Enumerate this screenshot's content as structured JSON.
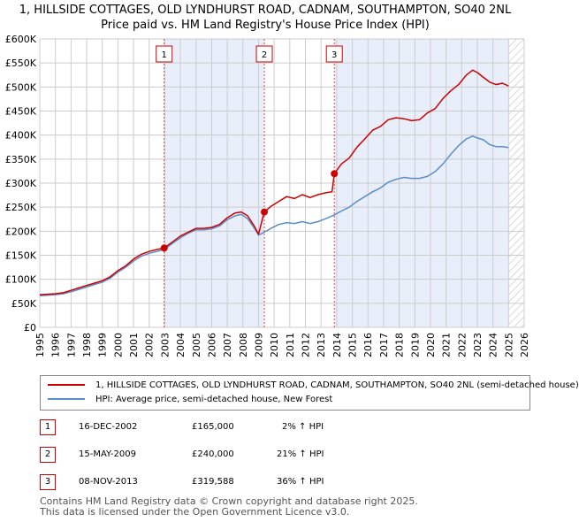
{
  "title_line1": "1, HILLSIDE COTTAGES, OLD LYNDHURST ROAD, CADNAM, SOUTHAMPTON, SO40 2NL",
  "title_line2": "Price paid vs. HM Land Registry's House Price Index (HPI)",
  "chart_data": {
    "type": "line",
    "title": "1, HILLSIDE COTTAGES, OLD LYNDHURST ROAD, CADNAM, SOUTHAMPTON, SO40 2NL — Price paid vs. HM Land Registry's House Price Index (HPI)",
    "xlabel": "",
    "ylabel": "",
    "xlim": [
      1995,
      2026
    ],
    "ylim": [
      0,
      600000
    ],
    "grid": true,
    "yticks": [
      {
        "value": 0,
        "label": "£0"
      },
      {
        "value": 50000,
        "label": "£50K"
      },
      {
        "value": 100000,
        "label": "£100K"
      },
      {
        "value": 150000,
        "label": "£150K"
      },
      {
        "value": 200000,
        "label": "£200K"
      },
      {
        "value": 250000,
        "label": "£250K"
      },
      {
        "value": 300000,
        "label": "£300K"
      },
      {
        "value": 350000,
        "label": "£350K"
      },
      {
        "value": 400000,
        "label": "£400K"
      },
      {
        "value": 450000,
        "label": "£450K"
      },
      {
        "value": 500000,
        "label": "£500K"
      },
      {
        "value": 550000,
        "label": "£550K"
      },
      {
        "value": 600000,
        "label": "£600K"
      }
    ],
    "xticks": [
      "1995",
      "1996",
      "1997",
      "1998",
      "1999",
      "2000",
      "2001",
      "2002",
      "2003",
      "2004",
      "2005",
      "2006",
      "2007",
      "2008",
      "2009",
      "2010",
      "2011",
      "2012",
      "2013",
      "2014",
      "2015",
      "2016",
      "2017",
      "2018",
      "2019",
      "2020",
      "2021",
      "2022",
      "2023",
      "2024",
      "2025",
      "2026"
    ],
    "series": [
      {
        "name": "1, HILLSIDE COTTAGES, OLD LYNDHURST ROAD, CADNAM, SOUTHAMPTON, SO40 2NL (semi-detached house)",
        "color": "#cc0000",
        "x": [
          1995.0,
          1996.0,
          1996.5,
          1997.0,
          1997.5,
          1998.0,
          1998.5,
          1999.0,
          1999.5,
          2000.0,
          2000.5,
          2001.0,
          2001.5,
          2002.0,
          2002.5,
          2002.96,
          2003.5,
          2004.0,
          2004.5,
          2005.0,
          2005.5,
          2006.0,
          2006.5,
          2007.0,
          2007.5,
          2007.9,
          2008.3,
          2008.7,
          2009.0,
          2009.3,
          2009.37,
          2009.8,
          2010.3,
          2010.8,
          2011.3,
          2011.8,
          2012.3,
          2012.8,
          2013.3,
          2013.7,
          2013.85,
          2014.3,
          2014.8,
          2015.3,
          2015.8,
          2016.3,
          2016.8,
          2017.3,
          2017.8,
          2018.3,
          2018.8,
          2019.3,
          2019.8,
          2020.3,
          2020.8,
          2021.3,
          2021.8,
          2022.3,
          2022.7,
          2023.0,
          2023.4,
          2023.8,
          2024.2,
          2024.6,
          2025.0
        ],
        "values": [
          68000,
          70000,
          72000,
          77000,
          82000,
          87000,
          92000,
          97000,
          105000,
          118000,
          128000,
          142000,
          152000,
          158000,
          162000,
          165000,
          178000,
          190000,
          198000,
          206000,
          206000,
          208000,
          214000,
          228000,
          238000,
          240000,
          232000,
          212000,
          194000,
          232000,
          240000,
          252000,
          262000,
          272000,
          268000,
          276000,
          270000,
          276000,
          280000,
          282000,
          319588,
          340000,
          352000,
          375000,
          392000,
          410000,
          418000,
          432000,
          436000,
          434000,
          430000,
          432000,
          446000,
          455000,
          476000,
          492000,
          505000,
          525000,
          535000,
          530000,
          520000,
          510000,
          505000,
          508000,
          502000
        ]
      },
      {
        "name": "HPI: Average price, semi-detached house, New Forest",
        "color": "#5b8dc9",
        "x": [
          1995.0,
          1996.0,
          1996.5,
          1997.0,
          1997.5,
          1998.0,
          1998.5,
          1999.0,
          1999.5,
          2000.0,
          2000.5,
          2001.0,
          2001.5,
          2002.0,
          2002.5,
          2002.96,
          2003.5,
          2004.0,
          2004.5,
          2005.0,
          2005.5,
          2006.0,
          2006.5,
          2007.0,
          2007.5,
          2007.9,
          2008.3,
          2008.7,
          2009.0,
          2009.37,
          2009.8,
          2010.3,
          2010.8,
          2011.3,
          2011.8,
          2012.3,
          2012.8,
          2013.3,
          2013.85,
          2014.3,
          2014.8,
          2015.3,
          2015.8,
          2016.3,
          2016.8,
          2017.3,
          2017.8,
          2018.3,
          2018.8,
          2019.3,
          2019.8,
          2020.3,
          2020.8,
          2021.3,
          2021.8,
          2022.3,
          2022.7,
          2023.0,
          2023.4,
          2023.8,
          2024.2,
          2024.6,
          2025.0
        ],
        "values": [
          66000,
          68000,
          70000,
          74000,
          79000,
          84000,
          89000,
          94000,
          102000,
          115000,
          125000,
          138000,
          148000,
          154000,
          158000,
          162000,
          175000,
          186000,
          196000,
          203000,
          203000,
          205000,
          211000,
          224000,
          232000,
          235000,
          226000,
          208000,
          192000,
          198000,
          206000,
          214000,
          218000,
          216000,
          220000,
          216000,
          220000,
          226000,
          234000,
          242000,
          250000,
          262000,
          272000,
          282000,
          290000,
          302000,
          308000,
          312000,
          310000,
          310000,
          314000,
          324000,
          340000,
          360000,
          378000,
          392000,
          398000,
          394000,
          390000,
          380000,
          376000,
          376000,
          374000
        ]
      }
    ],
    "sales": [
      {
        "marker": "1",
        "x": 2002.96,
        "value": 165000
      },
      {
        "marker": "2",
        "x": 2009.37,
        "value": 240000
      },
      {
        "marker": "3",
        "x": 2013.85,
        "value": 319588
      }
    ],
    "shaded_periods": [
      [
        2002.96,
        2009.37
      ],
      [
        2013.85,
        2025.0
      ]
    ],
    "future_hatch_from": 2025.0
  },
  "legend": {
    "property_label": "1, HILLSIDE COTTAGES, OLD LYNDHURST ROAD, CADNAM, SOUTHAMPTON, SO40 2NL (semi-detached house)",
    "hpi_label": "HPI: Average price, semi-detached house, New Forest"
  },
  "sales_table": [
    {
      "marker": "1",
      "date": "16-DEC-2002",
      "price": "£165,000",
      "hpi": "2% ↑ HPI"
    },
    {
      "marker": "2",
      "date": "15-MAY-2009",
      "price": "£240,000",
      "hpi": "21% ↑ HPI"
    },
    {
      "marker": "3",
      "date": "08-NOV-2013",
      "price": "£319,588",
      "hpi": "36% ↑ HPI"
    }
  ],
  "footer": {
    "line1": "Contains HM Land Registry data © Crown copyright and database right 2025.",
    "line2": "This data is licensed under the Open Government Licence v3.0."
  }
}
